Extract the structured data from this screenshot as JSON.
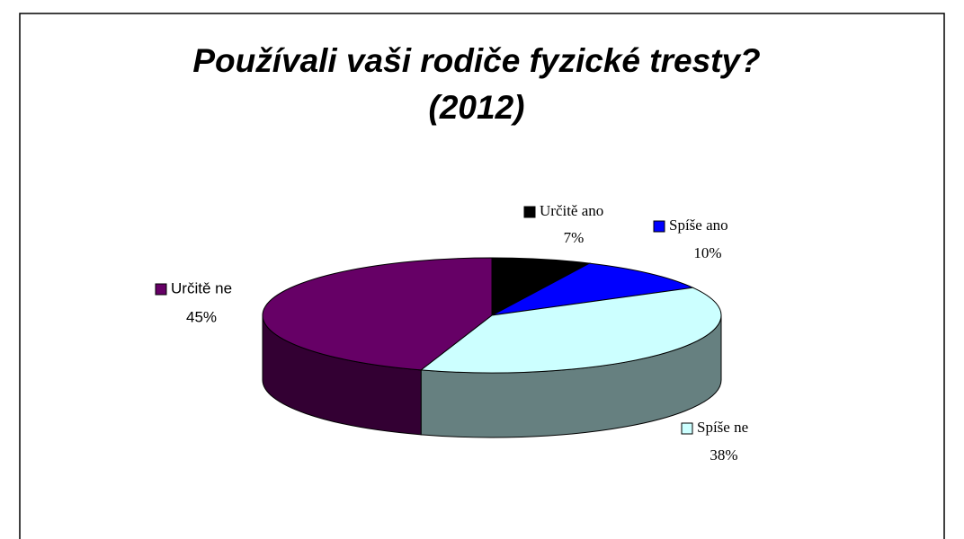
{
  "chart_data": {
    "type": "pie3d",
    "title": "Používali vaši rodiče fyzické tresty? (2012)",
    "categories": [
      "Určitě ano",
      "Spíše ano",
      "Spíše ne",
      "Určitě ne"
    ],
    "values": [
      7,
      10,
      38,
      45
    ],
    "value_labels": [
      "7%",
      "10%",
      "38%",
      "45%"
    ],
    "colors": [
      "#000000",
      "#0000ff",
      "#ccffff",
      "#660066"
    ]
  }
}
